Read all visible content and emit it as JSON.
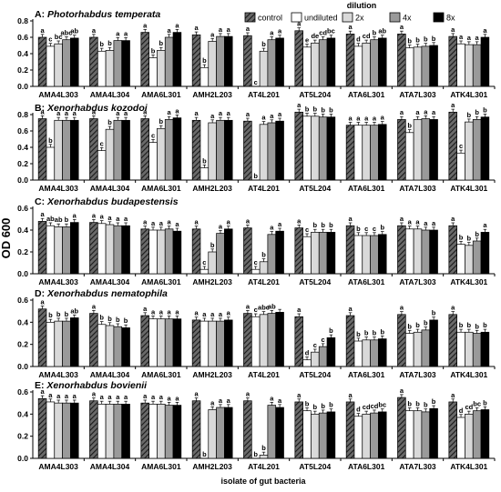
{
  "chart_data": {
    "type": "bar",
    "ylabel": "OD 600",
    "xlabel": "isolate of gut bacteria",
    "legend": {
      "title": "dilution",
      "placement": "top-right",
      "entries": [
        "control",
        "undiluted",
        "2x",
        "4x",
        "8x"
      ]
    },
    "series_colors": {
      "control": "#555555",
      "undiluted": "#ffffff",
      "2x": "#d9d9d9",
      "4x": "#9a9a9a",
      "8x": "#000000"
    },
    "categories": [
      "AMA4L303",
      "AMA4L304",
      "AMA6L301",
      "AMH2L203",
      "AT4L201",
      "AT5L204",
      "ATA6L301",
      "ATA7L303",
      "ATK4L301"
    ],
    "panels": [
      {
        "title_prefix": "A:",
        "title_species": "Photorhabdus temperata",
        "ylim": [
          0,
          0.8
        ],
        "yticks": [
          "0.0",
          "0.2",
          "0.4",
          "0.6",
          "0.8"
        ],
        "values": [
          [
            0.6,
            0.49,
            0.52,
            0.57,
            0.59
          ],
          [
            0.6,
            0.43,
            0.44,
            0.56,
            0.56
          ],
          [
            0.66,
            0.35,
            0.44,
            0.6,
            0.66
          ],
          [
            0.63,
            0.23,
            0.55,
            0.61,
            0.61
          ],
          [
            0.62,
            0.0,
            0.43,
            0.57,
            0.59
          ],
          [
            0.68,
            0.48,
            0.53,
            0.57,
            0.59
          ],
          [
            0.64,
            0.49,
            0.53,
            0.57,
            0.59
          ],
          [
            0.64,
            0.47,
            0.48,
            0.49,
            0.5
          ],
          [
            0.61,
            0.52,
            0.51,
            0.51,
            0.6
          ]
        ],
        "letters": [
          [
            "a",
            "c",
            "bc",
            "abc",
            "ab"
          ],
          [
            "a",
            "b",
            "b",
            "a",
            "a"
          ],
          [
            "a",
            "b",
            "b",
            "a",
            "a"
          ],
          [
            "a",
            "b",
            "a",
            "a",
            "a"
          ],
          [
            "a",
            "c",
            "b",
            "a",
            "a"
          ],
          [
            "a",
            "e",
            "de",
            "cd",
            "bc"
          ],
          [
            "a",
            "d",
            "cd",
            "b",
            "ab"
          ],
          [
            "a",
            "b",
            "b",
            "b",
            "b"
          ],
          [
            "a",
            "a",
            "a",
            "a",
            "a"
          ]
        ]
      },
      {
        "title_prefix": "B:",
        "title_species": "Xenorhabdus kozodoi",
        "ylim": [
          0,
          0.8
        ],
        "yticks": [
          "0.0",
          "0.2",
          "0.4",
          "0.6",
          "0.8"
        ],
        "values": [
          [
            0.75,
            0.4,
            0.73,
            0.73,
            0.73
          ],
          [
            0.75,
            0.36,
            0.62,
            0.73,
            0.73
          ],
          [
            0.75,
            0.46,
            0.63,
            0.74,
            0.76
          ],
          [
            0.73,
            0.15,
            0.7,
            0.73,
            0.73
          ],
          [
            0.72,
            0.0,
            0.68,
            0.7,
            0.72
          ],
          [
            0.83,
            0.78,
            0.78,
            0.77,
            0.77
          ],
          [
            0.67,
            0.67,
            0.67,
            0.67,
            0.68
          ],
          [
            0.74,
            0.58,
            0.74,
            0.75,
            0.74
          ],
          [
            0.83,
            0.33,
            0.71,
            0.74,
            0.77
          ]
        ],
        "letters": [
          [
            "a",
            "b",
            "a",
            "a",
            "a"
          ],
          [
            "a",
            "c",
            "b",
            "a",
            "a"
          ],
          [
            "a",
            "c",
            "b",
            "a",
            "a"
          ],
          [
            "a",
            "b",
            "a",
            "a",
            "a"
          ],
          [
            "a",
            "b",
            "a",
            "a",
            "a"
          ],
          [
            "a",
            "b",
            "b",
            "b",
            "b"
          ],
          [
            "a",
            "a",
            "a",
            "a",
            "a"
          ],
          [
            "a",
            "b",
            "a",
            "a",
            "a"
          ],
          [
            "a",
            "c",
            "b",
            "b",
            "b"
          ]
        ]
      },
      {
        "title_prefix": "C:",
        "title_species": "Xenorhabdus budapestensis",
        "ylim": [
          0,
          0.6
        ],
        "yticks": [
          "0.0",
          "0.2",
          "0.4",
          "0.6"
        ],
        "values": [
          [
            0.48,
            0.44,
            0.43,
            0.43,
            0.47
          ],
          [
            0.47,
            0.46,
            0.45,
            0.44,
            0.44
          ],
          [
            0.41,
            0.4,
            0.4,
            0.41,
            0.39
          ],
          [
            0.41,
            0.04,
            0.2,
            0.37,
            0.41
          ],
          [
            0.42,
            0.04,
            0.11,
            0.36,
            0.39
          ],
          [
            0.42,
            0.34,
            0.38,
            0.38,
            0.38
          ],
          [
            0.44,
            0.35,
            0.35,
            0.35,
            0.36
          ],
          [
            0.44,
            0.41,
            0.41,
            0.4,
            0.4
          ],
          [
            0.44,
            0.27,
            0.26,
            0.3,
            0.38
          ]
        ],
        "letters": [
          [
            "a",
            "ab",
            "ab",
            "b",
            "a"
          ],
          [
            "a",
            "a",
            "a",
            "a",
            "a"
          ],
          [
            "a",
            "a",
            "a",
            "a",
            "a"
          ],
          [
            "a",
            "c",
            "b",
            "a",
            "a"
          ],
          [
            "a",
            "c",
            "b",
            "a",
            "a"
          ],
          [
            "a",
            "c",
            "b",
            "b",
            "b"
          ],
          [
            "a",
            "b",
            "c",
            "c",
            "b"
          ],
          [
            "a",
            "a",
            "a",
            "a",
            "a"
          ],
          [
            "a",
            "b",
            "b",
            "b",
            "a"
          ]
        ]
      },
      {
        "title_prefix": "D:",
        "title_species": "Xenorhabdus nematophila",
        "ylim": [
          0,
          0.6
        ],
        "yticks": [
          "0.0",
          "0.2",
          "0.4",
          "0.6"
        ],
        "values": [
          [
            0.52,
            0.4,
            0.41,
            0.41,
            0.44
          ],
          [
            0.48,
            0.38,
            0.37,
            0.36,
            0.35
          ],
          [
            0.46,
            0.43,
            0.43,
            0.43,
            0.43
          ],
          [
            0.42,
            0.41,
            0.41,
            0.41,
            0.42
          ],
          [
            0.48,
            0.45,
            0.47,
            0.48,
            0.49
          ],
          [
            0.45,
            0.06,
            0.13,
            0.18,
            0.26
          ],
          [
            0.46,
            0.23,
            0.24,
            0.24,
            0.25
          ],
          [
            0.47,
            0.3,
            0.31,
            0.33,
            0.42
          ],
          [
            0.47,
            0.31,
            0.31,
            0.3,
            0.31
          ]
        ],
        "letters": [
          [
            "a",
            "b",
            "b",
            "b",
            "ab"
          ],
          [
            "a",
            "b",
            "b",
            "b",
            "b"
          ],
          [
            "a",
            "a",
            "a",
            "a",
            "a"
          ],
          [
            "a",
            "a",
            "a",
            "a",
            "a"
          ],
          [
            "a",
            "c",
            "abc",
            "ab",
            ""
          ],
          [
            "a",
            "d",
            "c",
            "c",
            "b"
          ],
          [
            "a",
            "b",
            "b",
            "b",
            "b"
          ],
          [
            "a",
            "b",
            "b",
            "b",
            "b"
          ],
          [
            "a",
            "b",
            "b",
            "b",
            "b"
          ]
        ]
      },
      {
        "title_prefix": "E:",
        "title_species": "Xenorhabdus bovienii",
        "ylim": [
          0,
          0.6
        ],
        "yticks": [
          "0.0",
          "0.2",
          "0.4",
          "0.6"
        ],
        "values": [
          [
            0.54,
            0.51,
            0.5,
            0.5,
            0.5
          ],
          [
            0.52,
            0.49,
            0.49,
            0.49,
            0.49
          ],
          [
            0.5,
            0.49,
            0.49,
            0.48,
            0.48
          ],
          [
            0.52,
            0.0,
            0.44,
            0.46,
            0.46
          ],
          [
            0.52,
            0.0,
            0.03,
            0.48,
            0.46
          ],
          [
            0.51,
            0.43,
            0.4,
            0.41,
            0.42
          ],
          [
            0.51,
            0.38,
            0.4,
            0.41,
            0.42
          ],
          [
            0.55,
            0.43,
            0.43,
            0.42,
            0.45
          ],
          [
            0.51,
            0.37,
            0.4,
            0.43,
            0.44
          ]
        ],
        "letters": [
          [
            "a",
            "a",
            "a",
            "a",
            "a"
          ],
          [
            "a",
            "a",
            "a",
            "a",
            "a"
          ],
          [
            "a",
            "a",
            "a",
            "a",
            "a"
          ],
          [
            "a",
            "b",
            "a",
            "a",
            "a"
          ],
          [
            "a",
            "b",
            "b",
            "a",
            "a"
          ],
          [
            "a",
            "b",
            "b",
            "b",
            "b"
          ],
          [
            "a",
            "d",
            "cd",
            "cd",
            "bc"
          ],
          [
            "a",
            "b",
            "b",
            "b",
            "b"
          ],
          [
            "a",
            "d",
            "cd",
            "bc",
            "b"
          ]
        ]
      }
    ]
  }
}
